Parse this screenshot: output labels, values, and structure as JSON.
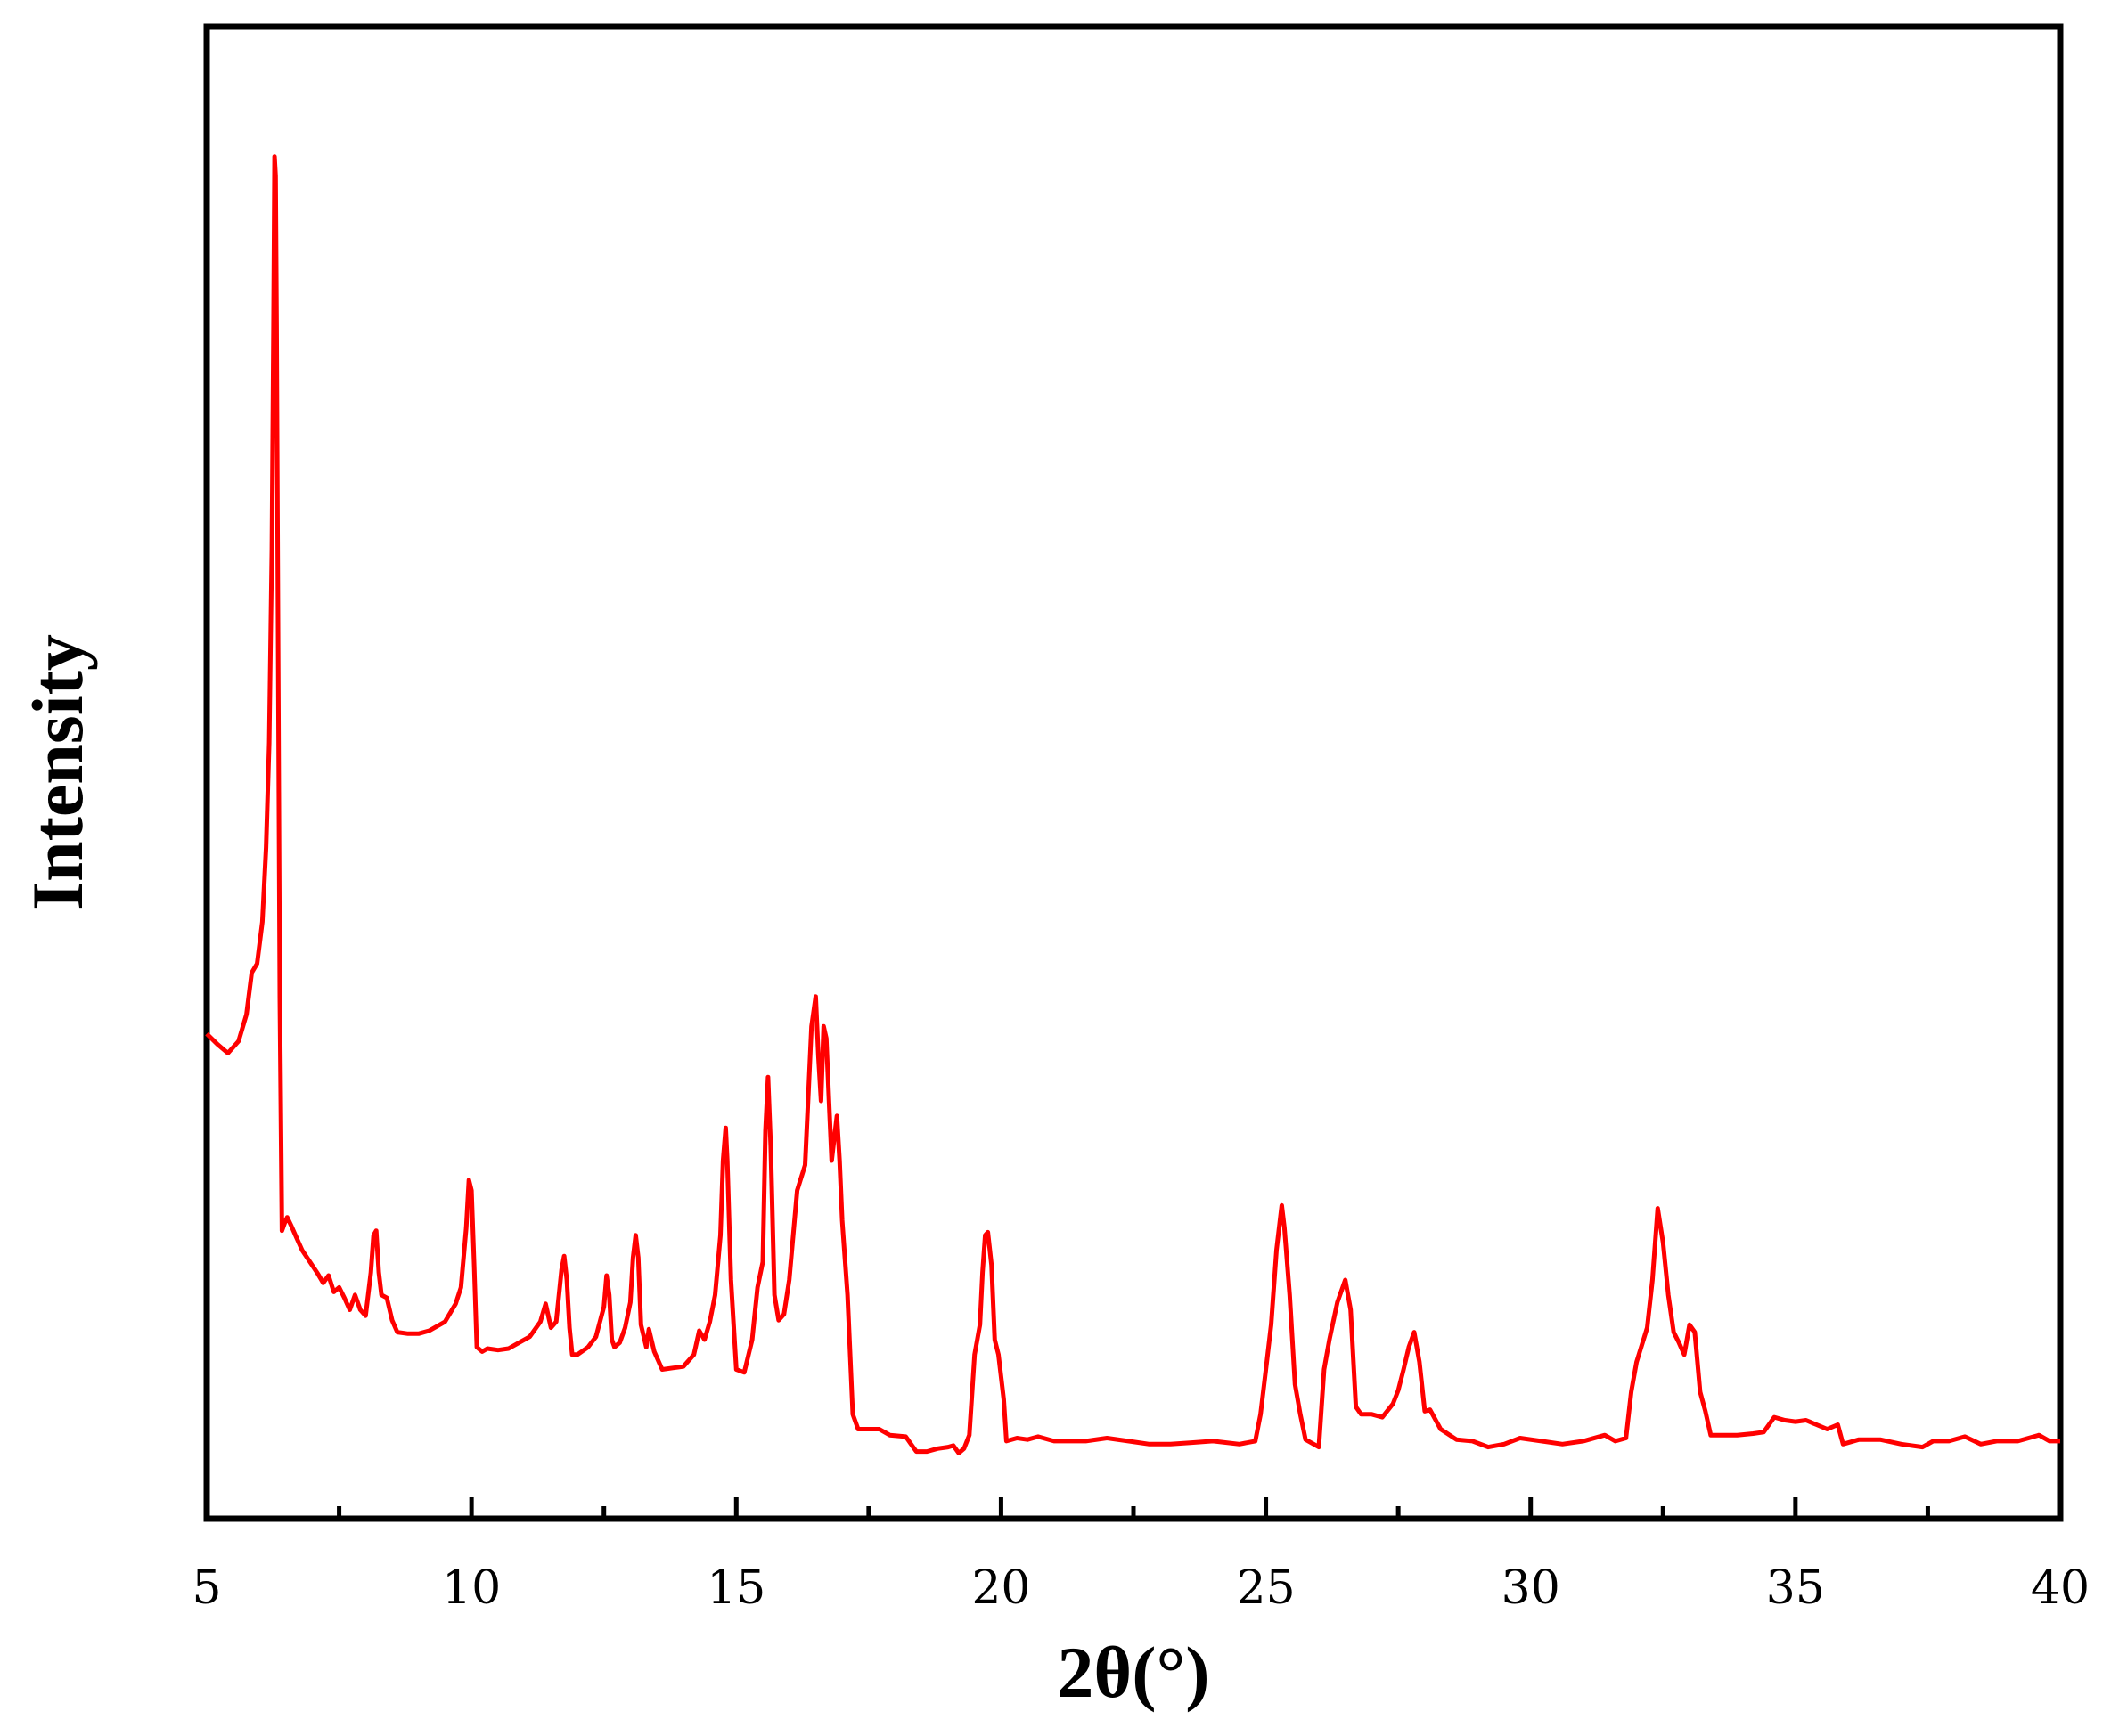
{
  "chart_data": {
    "type": "line",
    "title": "",
    "xlabel": "2θ(°)",
    "ylabel": "Intensity",
    "xlim": [
      5,
      40
    ],
    "ylim": [
      0,
      1000
    ],
    "x_ticks": [
      5,
      10,
      15,
      20,
      25,
      30,
      35,
      40
    ],
    "x_minor_ticks": [
      7.5,
      12.5,
      17.5,
      22.5,
      27.5,
      32.5,
      37.5
    ],
    "y_ticks_visible": false,
    "grid": false,
    "legend": "none",
    "series": [
      {
        "color": "#ff0000",
        "points": [
          [
            5.0,
            325
          ],
          [
            5.2,
            318
          ],
          [
            5.4,
            312
          ],
          [
            5.6,
            320
          ],
          [
            5.75,
            338
          ],
          [
            5.85,
            366
          ],
          [
            5.95,
            372
          ],
          [
            6.05,
            400
          ],
          [
            6.12,
            450
          ],
          [
            6.18,
            520
          ],
          [
            6.23,
            650
          ],
          [
            6.26,
            800
          ],
          [
            6.28,
            913
          ],
          [
            6.3,
            900
          ],
          [
            6.32,
            800
          ],
          [
            6.36,
            500
          ],
          [
            6.38,
            350
          ],
          [
            6.42,
            193
          ],
          [
            6.47,
            198
          ],
          [
            6.52,
            202
          ],
          [
            6.6,
            196
          ],
          [
            6.7,
            188
          ],
          [
            6.8,
            180
          ],
          [
            6.95,
            172
          ],
          [
            7.1,
            164
          ],
          [
            7.2,
            158
          ],
          [
            7.3,
            163
          ],
          [
            7.4,
            152
          ],
          [
            7.5,
            155
          ],
          [
            7.6,
            148
          ],
          [
            7.7,
            140
          ],
          [
            7.8,
            150
          ],
          [
            7.9,
            140
          ],
          [
            8.0,
            136
          ],
          [
            8.1,
            165
          ],
          [
            8.15,
            190
          ],
          [
            8.2,
            193
          ],
          [
            8.25,
            165
          ],
          [
            8.3,
            150
          ],
          [
            8.4,
            148
          ],
          [
            8.5,
            133
          ],
          [
            8.6,
            125
          ],
          [
            8.8,
            124
          ],
          [
            9.0,
            124
          ],
          [
            9.2,
            126
          ],
          [
            9.5,
            132
          ],
          [
            9.7,
            144
          ],
          [
            9.8,
            155
          ],
          [
            9.9,
            195
          ],
          [
            9.95,
            227
          ],
          [
            10.0,
            220
          ],
          [
            10.05,
            170
          ],
          [
            10.1,
            115
          ],
          [
            10.2,
            112
          ],
          [
            10.3,
            114
          ],
          [
            10.5,
            113
          ],
          [
            10.7,
            114
          ],
          [
            10.9,
            118
          ],
          [
            11.1,
            122
          ],
          [
            11.3,
            132
          ],
          [
            11.4,
            144
          ],
          [
            11.5,
            128
          ],
          [
            11.6,
            132
          ],
          [
            11.7,
            167
          ],
          [
            11.75,
            176
          ],
          [
            11.8,
            160
          ],
          [
            11.85,
            128
          ],
          [
            11.9,
            110
          ],
          [
            12.0,
            110
          ],
          [
            12.2,
            115
          ],
          [
            12.35,
            122
          ],
          [
            12.5,
            142
          ],
          [
            12.55,
            163
          ],
          [
            12.6,
            150
          ],
          [
            12.65,
            120
          ],
          [
            12.7,
            115
          ],
          [
            12.8,
            118
          ],
          [
            12.9,
            128
          ],
          [
            13.0,
            145
          ],
          [
            13.05,
            175
          ],
          [
            13.1,
            190
          ],
          [
            13.15,
            175
          ],
          [
            13.2,
            130
          ],
          [
            13.3,
            115
          ],
          [
            13.35,
            127
          ],
          [
            13.45,
            112
          ],
          [
            13.6,
            100
          ],
          [
            13.8,
            101
          ],
          [
            14.0,
            102
          ],
          [
            14.2,
            110
          ],
          [
            14.3,
            126
          ],
          [
            14.4,
            120
          ],
          [
            14.5,
            132
          ],
          [
            14.6,
            150
          ],
          [
            14.7,
            190
          ],
          [
            14.75,
            240
          ],
          [
            14.8,
            262
          ],
          [
            14.83,
            240
          ],
          [
            14.9,
            160
          ],
          [
            15.0,
            100
          ],
          [
            15.15,
            98
          ],
          [
            15.3,
            120
          ],
          [
            15.4,
            155
          ],
          [
            15.5,
            172
          ],
          [
            15.55,
            260
          ],
          [
            15.6,
            296
          ],
          [
            15.65,
            250
          ],
          [
            15.72,
            150
          ],
          [
            15.8,
            133
          ],
          [
            15.9,
            137
          ],
          [
            16.0,
            160
          ],
          [
            16.15,
            220
          ],
          [
            16.3,
            237
          ],
          [
            16.42,
            330
          ],
          [
            16.5,
            350
          ],
          [
            16.55,
            310
          ],
          [
            16.6,
            280
          ],
          [
            16.65,
            330
          ],
          [
            16.7,
            322
          ],
          [
            16.75,
            280
          ],
          [
            16.8,
            240
          ],
          [
            16.85,
            255
          ],
          [
            16.9,
            270
          ],
          [
            16.95,
            240
          ],
          [
            17.0,
            200
          ],
          [
            17.1,
            150
          ],
          [
            17.2,
            70
          ],
          [
            17.3,
            60
          ],
          [
            17.5,
            60
          ],
          [
            17.7,
            60
          ],
          [
            17.9,
            56
          ],
          [
            18.2,
            55
          ],
          [
            18.3,
            50
          ],
          [
            18.4,
            45
          ],
          [
            18.6,
            45
          ],
          [
            18.8,
            47
          ],
          [
            19.0,
            48
          ],
          [
            19.1,
            49
          ],
          [
            19.2,
            44
          ],
          [
            19.3,
            47
          ],
          [
            19.4,
            56
          ],
          [
            19.5,
            110
          ],
          [
            19.6,
            130
          ],
          [
            19.65,
            165
          ],
          [
            19.7,
            190
          ],
          [
            19.75,
            192
          ],
          [
            19.82,
            170
          ],
          [
            19.88,
            120
          ],
          [
            19.95,
            110
          ],
          [
            20.05,
            80
          ],
          [
            20.1,
            52
          ],
          [
            20.3,
            54
          ],
          [
            20.5,
            53
          ],
          [
            20.7,
            55
          ],
          [
            21.0,
            52
          ],
          [
            21.3,
            52
          ],
          [
            21.6,
            52
          ],
          [
            22.0,
            54
          ],
          [
            22.4,
            52
          ],
          [
            22.8,
            50
          ],
          [
            23.2,
            50
          ],
          [
            23.6,
            51
          ],
          [
            24.0,
            52
          ],
          [
            24.5,
            50
          ],
          [
            24.8,
            52
          ],
          [
            24.9,
            70
          ],
          [
            25.0,
            100
          ],
          [
            25.1,
            130
          ],
          [
            25.2,
            180
          ],
          [
            25.3,
            210
          ],
          [
            25.35,
            195
          ],
          [
            25.45,
            150
          ],
          [
            25.55,
            90
          ],
          [
            25.65,
            70
          ],
          [
            25.75,
            53
          ],
          [
            26.0,
            48
          ],
          [
            26.1,
            100
          ],
          [
            26.2,
            120
          ],
          [
            26.35,
            145
          ],
          [
            26.5,
            160
          ],
          [
            26.6,
            140
          ],
          [
            26.7,
            75
          ],
          [
            26.8,
            70
          ],
          [
            27.0,
            70
          ],
          [
            27.2,
            68
          ],
          [
            27.4,
            77
          ],
          [
            27.5,
            86
          ],
          [
            27.6,
            100
          ],
          [
            27.7,
            115
          ],
          [
            27.8,
            125
          ],
          [
            27.9,
            105
          ],
          [
            28.0,
            72
          ],
          [
            28.1,
            73
          ],
          [
            28.3,
            60
          ],
          [
            28.6,
            53
          ],
          [
            28.9,
            52
          ],
          [
            29.2,
            48
          ],
          [
            29.5,
            50
          ],
          [
            29.8,
            54
          ],
          [
            30.2,
            52
          ],
          [
            30.6,
            50
          ],
          [
            31.0,
            52
          ],
          [
            31.4,
            56
          ],
          [
            31.6,
            52
          ],
          [
            31.8,
            54
          ],
          [
            31.9,
            85
          ],
          [
            32.0,
            105
          ],
          [
            32.2,
            128
          ],
          [
            32.3,
            160
          ],
          [
            32.4,
            208
          ],
          [
            32.5,
            185
          ],
          [
            32.6,
            150
          ],
          [
            32.7,
            125
          ],
          [
            32.8,
            118
          ],
          [
            32.9,
            110
          ],
          [
            33.0,
            130
          ],
          [
            33.1,
            125
          ],
          [
            33.2,
            85
          ],
          [
            33.3,
            72
          ],
          [
            33.4,
            56
          ],
          [
            33.6,
            56
          ],
          [
            33.9,
            56
          ],
          [
            34.2,
            57
          ],
          [
            34.4,
            58
          ],
          [
            34.6,
            68
          ],
          [
            34.8,
            66
          ],
          [
            35.0,
            65
          ],
          [
            35.2,
            66
          ],
          [
            35.4,
            63
          ],
          [
            35.6,
            60
          ],
          [
            35.8,
            63
          ],
          [
            35.9,
            50
          ],
          [
            36.2,
            53
          ],
          [
            36.6,
            53
          ],
          [
            37.0,
            50
          ],
          [
            37.4,
            48
          ],
          [
            37.6,
            52
          ],
          [
            37.9,
            52
          ],
          [
            38.2,
            55
          ],
          [
            38.5,
            50
          ],
          [
            38.8,
            52
          ],
          [
            39.2,
            52
          ],
          [
            39.6,
            56
          ],
          [
            39.8,
            52
          ],
          [
            40.0,
            52
          ]
        ]
      }
    ]
  }
}
